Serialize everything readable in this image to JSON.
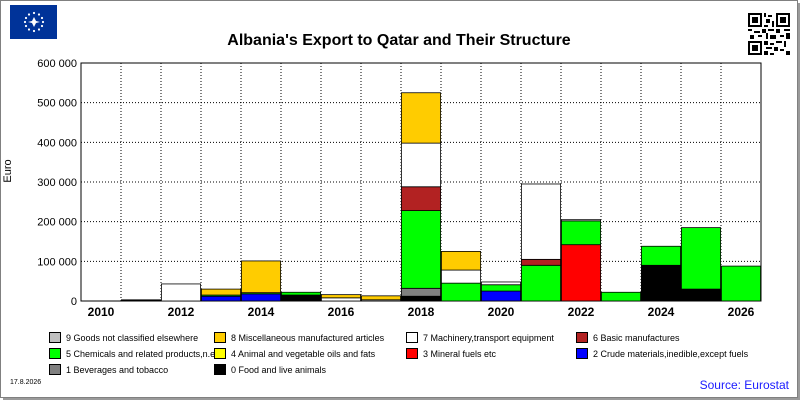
{
  "header": {
    "title": "Albania's Export to Qatar and Their Structure",
    "logo_icon": "eu-flag-icon",
    "qr_icon": "qr-code-icon"
  },
  "footer": {
    "date": "17.8.2026",
    "source": "Source: Eurostat"
  },
  "colors": {
    "source_text": "#1a1aff",
    "plot_background": "#ffffff",
    "grid": "#000000"
  },
  "chart_data": {
    "type": "bar",
    "stacked": true,
    "title": "Albania's Export to Qatar and Their Structure",
    "ylabel": "Euro",
    "xlabel": "",
    "ylim": [
      0,
      600000
    ],
    "yticks": [
      0,
      100000,
      200000,
      300000,
      400000,
      500000,
      600000
    ],
    "ytick_labels": [
      "0",
      "100 000",
      "200 000",
      "300 000",
      "400 000",
      "500 000",
      "600 000"
    ],
    "grid": true,
    "legend_position": "bottom",
    "categories": [
      "2010",
      "2011",
      "2012",
      "2013",
      "2014",
      "2015",
      "2016",
      "2017",
      "2018",
      "2019",
      "2020",
      "2021",
      "2022",
      "2023",
      "2024",
      "2025",
      "2026"
    ],
    "xtick_labels": [
      "2010",
      "",
      "2012",
      "",
      "2014",
      "",
      "2016",
      "",
      "2018",
      "",
      "2020",
      "",
      "2022",
      "",
      "2024",
      "",
      "2026"
    ],
    "series": [
      {
        "name": "0 Food and live animals",
        "color": "#000000",
        "values": [
          0,
          3000,
          0,
          0,
          0,
          15000,
          0,
          0,
          12000,
          0,
          0,
          0,
          0,
          0,
          90000,
          30000,
          0
        ]
      },
      {
        "name": "1 Beverages and tobacco",
        "color": "#808080",
        "values": [
          0,
          0,
          0,
          0,
          0,
          0,
          0,
          0,
          20000,
          0,
          0,
          0,
          0,
          0,
          0,
          0,
          0
        ]
      },
      {
        "name": "2 Crude materials,inedible,except fuels",
        "color": "#0000ff",
        "values": [
          0,
          0,
          0,
          12000,
          18000,
          0,
          0,
          0,
          0,
          0,
          25000,
          0,
          0,
          0,
          0,
          0,
          0
        ]
      },
      {
        "name": "3 Mineral fuels etc",
        "color": "#ff0000",
        "values": [
          0,
          0,
          0,
          0,
          0,
          0,
          0,
          0,
          0,
          0,
          0,
          0,
          142000,
          0,
          0,
          0,
          0
        ]
      },
      {
        "name": "4 Animal and vegetable oils and fats",
        "color": "#ffff00",
        "values": [
          0,
          0,
          0,
          0,
          0,
          0,
          0,
          0,
          0,
          0,
          0,
          0,
          0,
          0,
          0,
          0,
          0
        ]
      },
      {
        "name": "5 Chemicals and related products,n.e.s.",
        "color": "#00ff00",
        "values": [
          0,
          0,
          0,
          3000,
          3000,
          7000,
          0,
          0,
          196000,
          45000,
          16000,
          90000,
          60000,
          22000,
          48000,
          155000,
          88000
        ]
      },
      {
        "name": "6 Basic manufactures",
        "color": "#b22222",
        "values": [
          0,
          0,
          0,
          0,
          0,
          0,
          0,
          0,
          60000,
          0,
          0,
          15000,
          0,
          0,
          0,
          0,
          0
        ]
      },
      {
        "name": "7 Machinery,transport equipment",
        "color": "#ffffff",
        "values": [
          0,
          0,
          43000,
          0,
          0,
          0,
          8000,
          3000,
          110000,
          33000,
          7000,
          190000,
          3000,
          0,
          0,
          0,
          0
        ]
      },
      {
        "name": "8 Miscellaneous manufactured articles",
        "color": "#ffcc00",
        "values": [
          0,
          0,
          0,
          15000,
          80000,
          0,
          8000,
          10000,
          127000,
          47000,
          0,
          0,
          0,
          0,
          0,
          0,
          0
        ]
      },
      {
        "name": "9 Goods not classified elsewhere",
        "color": "#c0c0c0",
        "values": [
          0,
          0,
          0,
          0,
          0,
          0,
          0,
          0,
          0,
          0,
          0,
          0,
          0,
          0,
          0,
          0,
          0
        ]
      }
    ],
    "legend_order": [
      9,
      8,
      7,
      6,
      5,
      4,
      3,
      2,
      1,
      0
    ]
  }
}
